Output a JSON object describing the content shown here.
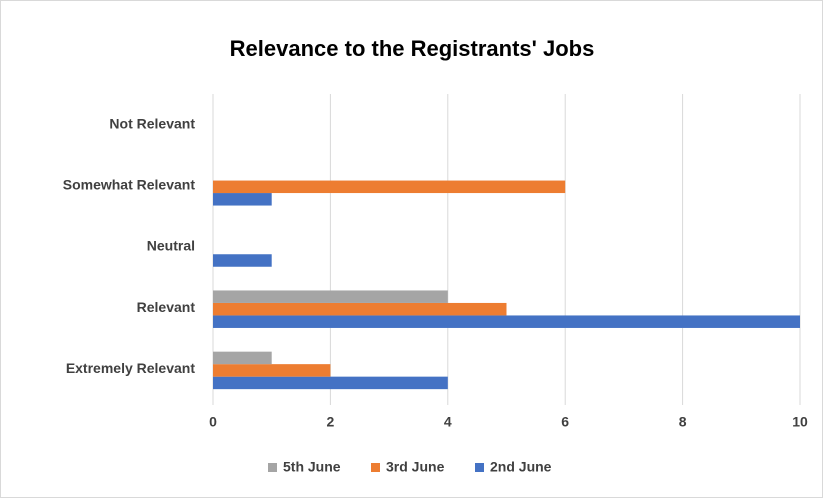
{
  "chart_data": {
    "type": "hbar",
    "title": "Relevance to the Registrants' Jobs",
    "categories": [
      "Extremely Relevant",
      "Relevant",
      "Neutral",
      "Somewhat Relevant",
      "Not Relevant"
    ],
    "series": [
      {
        "name": "2nd June",
        "color": "#4472c4",
        "values": [
          4,
          10,
          1,
          1,
          0
        ]
      },
      {
        "name": "3rd June",
        "color": "#ed7d31",
        "values": [
          2,
          5,
          0,
          6,
          0
        ]
      },
      {
        "name": "5th June",
        "color": "#a5a5a5",
        "values": [
          1,
          4,
          0,
          0,
          0
        ]
      }
    ],
    "xlim": [
      0,
      10
    ],
    "xticks": [
      0,
      2,
      4,
      6,
      8,
      10
    ],
    "grid": true,
    "legend": "bottom"
  }
}
